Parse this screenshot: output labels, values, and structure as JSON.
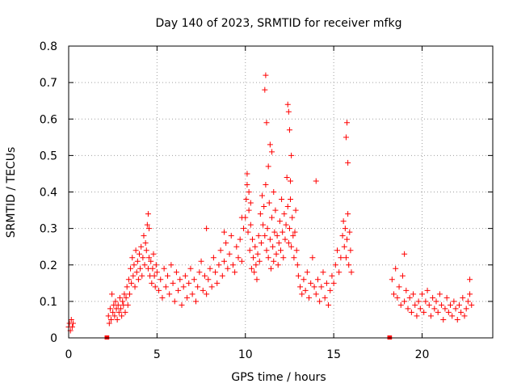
{
  "chart_data": {
    "type": "scatter",
    "title": "Day 140 of 2023, SRMTID for receiver mfkg",
    "xlabel": "GPS time / hours",
    "ylabel": "SRMTID / TECUs",
    "xlim": [
      0,
      24
    ],
    "ylim": [
      0,
      0.8
    ],
    "xticks": [
      0,
      5,
      10,
      15,
      20
    ],
    "xtick_labels": [
      "0",
      "5",
      "10",
      "15",
      "20"
    ],
    "yticks": [
      0,
      0.1,
      0.2,
      0.3,
      0.4,
      0.5,
      0.6,
      0.7,
      0.8
    ],
    "ytick_labels": [
      "0",
      "0.1",
      "0.2",
      "0.3",
      "0.4",
      "0.5",
      "0.6",
      "0.7",
      "0.8"
    ],
    "grid": true,
    "marker": "+",
    "color": "#ff0000",
    "series": [
      {
        "name": "SRMTID",
        "x": [
          0.0,
          0.05,
          0.1,
          0.15,
          0.2,
          0.25,
          2.15,
          2.18,
          2.25,
          2.3,
          2.35,
          2.4,
          2.45,
          2.5,
          2.55,
          2.6,
          2.65,
          2.7,
          2.75,
          2.8,
          2.85,
          2.9,
          2.95,
          3.0,
          3.05,
          3.1,
          3.15,
          3.2,
          3.25,
          3.3,
          3.35,
          3.4,
          3.45,
          3.5,
          3.55,
          3.6,
          3.65,
          3.7,
          3.75,
          3.8,
          3.85,
          3.9,
          3.95,
          4.0,
          4.05,
          4.1,
          4.15,
          4.2,
          4.25,
          4.3,
          4.35,
          4.4,
          4.45,
          4.5,
          4.55,
          4.6,
          4.65,
          4.7,
          4.75,
          4.8,
          4.85,
          4.9,
          4.95,
          5.0,
          5.1,
          5.2,
          5.3,
          5.4,
          5.5,
          5.6,
          5.7,
          5.8,
          5.9,
          6.0,
          6.1,
          6.2,
          6.3,
          6.4,
          6.5,
          6.6,
          6.7,
          6.8,
          6.9,
          7.0,
          7.1,
          7.2,
          7.3,
          7.4,
          7.5,
          7.6,
          7.7,
          7.8,
          7.9,
          8.0,
          8.1,
          8.2,
          8.3,
          8.4,
          8.5,
          8.6,
          8.7,
          8.8,
          8.9,
          9.0,
          9.1,
          9.2,
          9.3,
          9.4,
          9.5,
          9.6,
          9.7,
          9.8,
          9.9,
          10.0,
          10.05,
          10.1,
          10.15,
          10.2,
          10.25,
          10.3,
          10.35,
          10.4,
          10.45,
          10.5,
          10.55,
          10.6,
          10.65,
          10.7,
          10.75,
          10.8,
          10.85,
          10.9,
          10.95,
          11.0,
          11.05,
          11.1,
          11.15,
          11.2,
          11.25,
          11.3,
          11.35,
          11.4,
          11.45,
          11.5,
          11.55,
          11.6,
          11.65,
          11.7,
          11.75,
          11.8,
          11.85,
          11.9,
          11.95,
          12.0,
          12.05,
          12.1,
          12.15,
          12.2,
          12.25,
          12.3,
          12.35,
          12.4,
          12.45,
          12.5,
          12.55,
          12.6,
          12.65,
          12.7,
          12.75,
          12.8,
          12.85,
          12.9,
          12.95,
          13.0,
          13.1,
          13.2,
          13.3,
          13.4,
          13.5,
          13.6,
          13.7,
          13.8,
          13.9,
          14.0,
          14.1,
          14.2,
          14.3,
          14.4,
          14.5,
          14.6,
          14.7,
          14.8,
          14.9,
          15.0,
          15.1,
          15.2,
          15.3,
          15.4,
          15.5,
          15.55,
          15.6,
          15.65,
          15.7,
          15.75,
          15.8,
          15.85,
          15.9,
          15.95,
          16.0,
          18.15,
          18.18,
          18.3,
          18.4,
          18.5,
          18.6,
          18.7,
          18.8,
          18.9,
          19.0,
          19.1,
          19.2,
          19.3,
          19.4,
          19.5,
          19.6,
          19.7,
          19.8,
          19.9,
          20.0,
          20.1,
          20.2,
          20.3,
          20.4,
          20.5,
          20.6,
          20.7,
          20.8,
          20.9,
          21.0,
          21.1,
          21.2,
          21.3,
          21.4,
          21.5,
          21.6,
          21.7,
          21.8,
          21.9,
          22.0,
          22.1,
          22.2,
          22.3,
          22.4,
          22.5,
          22.6,
          22.7,
          22.8,
          10.1,
          10.2,
          10.3,
          11.1,
          11.15,
          11.2,
          11.3,
          11.4,
          11.5,
          11.6,
          12.4,
          12.45,
          12.5,
          12.55,
          12.6,
          14.0,
          15.7,
          15.75,
          15.8,
          4.5,
          4.55,
          7.8,
          8.8,
          9.8,
          19.0,
          22.7
        ],
        "y": [
          0.03,
          0.04,
          0.02,
          0.05,
          0.03,
          0.04,
          0.0,
          0.0,
          0.06,
          0.04,
          0.08,
          0.05,
          0.12,
          0.07,
          0.09,
          0.06,
          0.1,
          0.08,
          0.05,
          0.09,
          0.07,
          0.11,
          0.08,
          0.06,
          0.1,
          0.09,
          0.12,
          0.07,
          0.11,
          0.14,
          0.09,
          0.16,
          0.12,
          0.19,
          0.15,
          0.22,
          0.17,
          0.2,
          0.14,
          0.24,
          0.18,
          0.21,
          0.16,
          0.23,
          0.19,
          0.25,
          0.17,
          0.22,
          0.28,
          0.2,
          0.26,
          0.24,
          0.31,
          0.19,
          0.22,
          0.17,
          0.21,
          0.15,
          0.19,
          0.23,
          0.17,
          0.14,
          0.2,
          0.18,
          0.13,
          0.16,
          0.11,
          0.19,
          0.14,
          0.17,
          0.12,
          0.2,
          0.15,
          0.1,
          0.18,
          0.13,
          0.16,
          0.09,
          0.14,
          0.17,
          0.11,
          0.15,
          0.19,
          0.12,
          0.16,
          0.1,
          0.14,
          0.18,
          0.21,
          0.13,
          0.17,
          0.12,
          0.16,
          0.19,
          0.14,
          0.22,
          0.18,
          0.15,
          0.2,
          0.24,
          0.17,
          0.21,
          0.26,
          0.19,
          0.23,
          0.28,
          0.2,
          0.18,
          0.25,
          0.22,
          0.27,
          0.21,
          0.3,
          0.33,
          0.38,
          0.42,
          0.29,
          0.35,
          0.24,
          0.31,
          0.19,
          0.27,
          0.22,
          0.18,
          0.25,
          0.2,
          0.16,
          0.23,
          0.28,
          0.21,
          0.34,
          0.26,
          0.39,
          0.31,
          0.36,
          0.28,
          0.42,
          0.24,
          0.3,
          0.22,
          0.37,
          0.27,
          0.19,
          0.33,
          0.25,
          0.21,
          0.29,
          0.35,
          0.23,
          0.28,
          0.2,
          0.26,
          0.32,
          0.24,
          0.38,
          0.29,
          0.22,
          0.34,
          0.27,
          0.31,
          0.44,
          0.36,
          0.26,
          0.3,
          0.38,
          0.25,
          0.33,
          0.28,
          0.22,
          0.29,
          0.35,
          0.24,
          0.2,
          0.17,
          0.14,
          0.12,
          0.16,
          0.13,
          0.18,
          0.11,
          0.15,
          0.22,
          0.14,
          0.12,
          0.16,
          0.1,
          0.14,
          0.18,
          0.11,
          0.15,
          0.09,
          0.13,
          0.17,
          0.15,
          0.2,
          0.24,
          0.18,
          0.22,
          0.28,
          0.32,
          0.25,
          0.3,
          0.22,
          0.27,
          0.34,
          0.2,
          0.29,
          0.24,
          0.18,
          0.0,
          0.0,
          0.16,
          0.12,
          0.19,
          0.11,
          0.14,
          0.09,
          0.17,
          0.1,
          0.13,
          0.08,
          0.11,
          0.07,
          0.12,
          0.09,
          0.06,
          0.1,
          0.08,
          0.12,
          0.07,
          0.1,
          0.13,
          0.09,
          0.06,
          0.11,
          0.08,
          0.1,
          0.07,
          0.12,
          0.09,
          0.05,
          0.08,
          0.11,
          0.07,
          0.09,
          0.06,
          0.1,
          0.08,
          0.05,
          0.09,
          0.07,
          0.11,
          0.06,
          0.08,
          0.1,
          0.12,
          0.09,
          0.45,
          0.4,
          0.37,
          0.68,
          0.72,
          0.59,
          0.47,
          0.53,
          0.51,
          0.4,
          0.64,
          0.62,
          0.57,
          0.43,
          0.5,
          0.43,
          0.55,
          0.59,
          0.48,
          0.34,
          0.3,
          0.3,
          0.29,
          0.33,
          0.23,
          0.16
        ]
      }
    ]
  }
}
